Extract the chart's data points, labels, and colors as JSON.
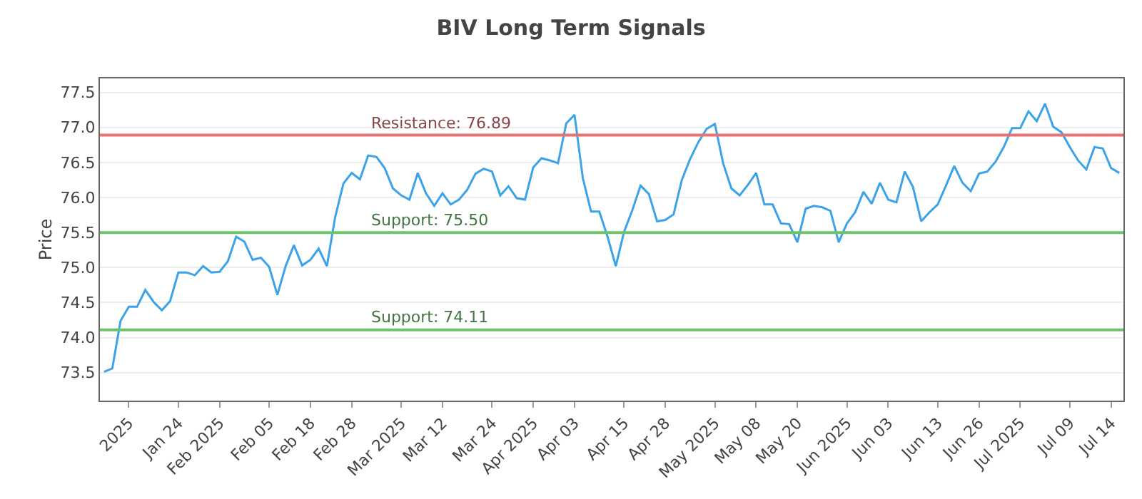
{
  "chart_data": {
    "type": "line",
    "title": "BIV Long Term Signals",
    "ylabel": "Price",
    "categories": [
      null,
      null,
      null,
      "2025",
      null,
      null,
      null,
      null,
      null,
      "Jan 24",
      null,
      null,
      null,
      null,
      "Feb 2025",
      null,
      null,
      null,
      null,
      null,
      "Feb 05",
      null,
      null,
      null,
      null,
      "Feb 18",
      null,
      null,
      null,
      null,
      "Feb 28",
      null,
      null,
      null,
      null,
      null,
      "Mar 2025",
      null,
      null,
      null,
      null,
      "Mar 12",
      null,
      null,
      null,
      null,
      null,
      "Mar 24",
      null,
      null,
      null,
      null,
      "Apr 2025",
      null,
      null,
      null,
      null,
      "Apr 03",
      null,
      null,
      null,
      null,
      null,
      "Apr 15",
      null,
      null,
      null,
      null,
      "Apr 28",
      null,
      null,
      null,
      null,
      null,
      "May 2025",
      null,
      null,
      null,
      null,
      "May 08",
      null,
      null,
      null,
      null,
      "May 20",
      null,
      null,
      null,
      null,
      null,
      "Jun 2025",
      null,
      null,
      null,
      null,
      "Jun 03",
      null,
      null,
      null,
      null,
      null,
      "Jun 13",
      null,
      null,
      null,
      null,
      "Jun 26",
      null,
      null,
      null,
      null,
      "Jul 2025",
      null,
      null,
      null,
      null,
      null,
      "Jul 09",
      null,
      null,
      null,
      null,
      "Jul 14",
      null
    ],
    "series": [
      {
        "color": "#3ca3e8",
        "values": [
          73.51,
          73.56,
          74.24,
          74.44,
          74.44,
          74.68,
          74.51,
          74.39,
          74.52,
          74.93,
          74.93,
          74.89,
          75.02,
          74.93,
          74.94,
          75.09,
          75.44,
          75.37,
          75.11,
          75.14,
          75.01,
          74.61,
          75.02,
          75.32,
          75.03,
          75.11,
          75.27,
          75.02,
          75.72,
          76.2,
          76.35,
          76.26,
          76.6,
          76.58,
          76.42,
          76.13,
          76.03,
          75.97,
          76.35,
          76.06,
          75.88,
          76.06,
          75.9,
          75.97,
          76.11,
          76.34,
          76.41,
          76.37,
          76.03,
          76.16,
          75.99,
          75.97,
          76.43,
          76.56,
          76.53,
          76.49,
          77.06,
          77.18,
          76.28,
          75.8,
          75.8,
          75.44,
          75.02,
          75.51,
          75.82,
          76.17,
          76.05,
          75.66,
          75.68,
          75.76,
          76.25,
          76.55,
          76.79,
          76.98,
          77.05,
          76.49,
          76.13,
          76.03,
          76.18,
          76.35,
          75.9,
          75.9,
          75.63,
          75.62,
          75.36,
          75.84,
          75.88,
          75.86,
          75.81,
          75.36,
          75.63,
          75.79,
          76.08,
          75.91,
          76.21,
          75.97,
          75.93,
          76.37,
          76.15,
          75.66,
          75.79,
          75.9,
          76.17,
          76.45,
          76.21,
          76.09,
          76.34,
          76.37,
          76.51,
          76.72,
          76.99,
          76.99,
          77.23,
          77.09,
          77.34,
          77.01,
          76.93,
          76.72,
          76.53,
          76.4,
          76.72,
          76.7,
          76.42,
          76.35
        ]
      }
    ],
    "ylim": [
      73.1,
      77.7
    ],
    "yticks": [
      73.5,
      {
        "value": 74,
        "label": "74.0"
      },
      74.5,
      {
        "value": 75,
        "label": "75.0"
      },
      75.5,
      {
        "value": 76,
        "label": "76.0"
      },
      76.5,
      {
        "value": 77,
        "label": "77.0"
      },
      77.5
    ],
    "grid": "y",
    "marker": "none",
    "line_style": "solid",
    "ref_lines": [
      {
        "axis": "y",
        "value": 76.89,
        "label": "Resistance: 76.89",
        "color": "#e57373"
      },
      {
        "axis": "y",
        "value": 75.5,
        "label": "Support: 75.50",
        "color": "#6cc36c"
      },
      {
        "axis": "y",
        "value": 74.11,
        "label": "Support: 74.11",
        "color": "#6cc36c"
      }
    ]
  }
}
